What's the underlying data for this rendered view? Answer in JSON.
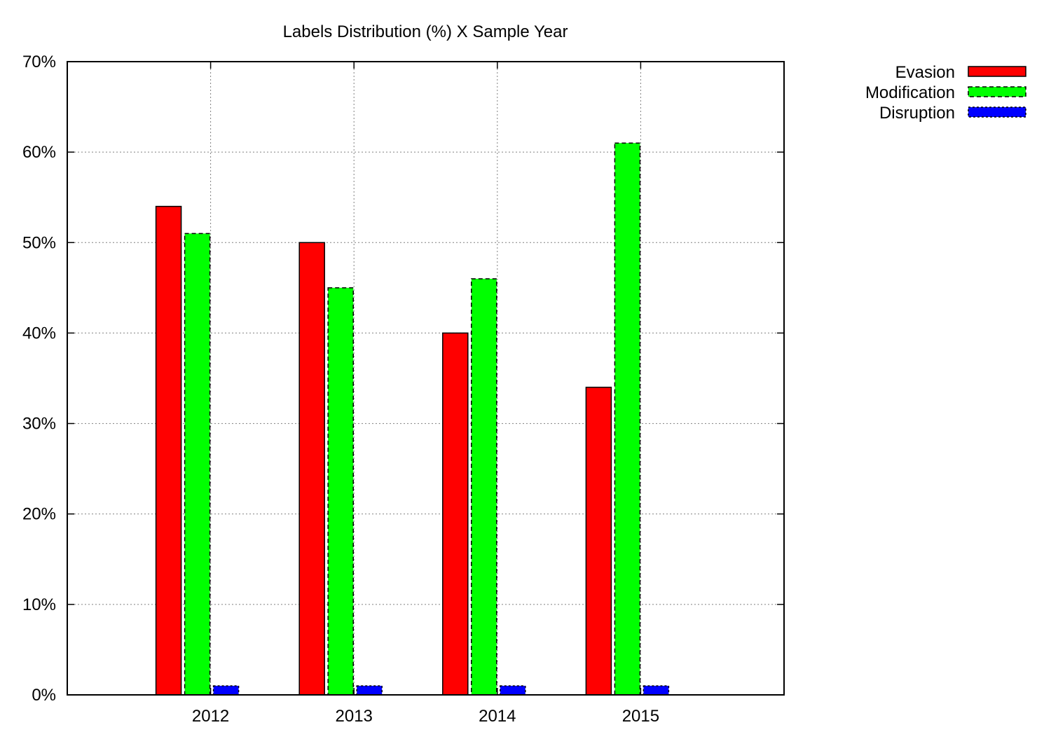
{
  "chart_data": {
    "type": "bar",
    "title": "Labels Distribution (%) X Sample Year",
    "xlabel": "",
    "ylabel": "",
    "categories": [
      "2012",
      "2013",
      "2014",
      "2015"
    ],
    "series": [
      {
        "name": "Evasion",
        "values": [
          54,
          50,
          40,
          34
        ],
        "color": "#ff0000",
        "border": "solid"
      },
      {
        "name": "Modification",
        "values": [
          51,
          45,
          46,
          61
        ],
        "color": "#00ff00",
        "border": "dashed"
      },
      {
        "name": "Disruption",
        "values": [
          1,
          1,
          1,
          1
        ],
        "color": "#0000ff",
        "border": "dotted"
      }
    ],
    "ylim": [
      0,
      70
    ],
    "x_range_in_category_units": [
      -1.0,
      4.0
    ],
    "yticks": [
      0,
      10,
      20,
      30,
      40,
      50,
      60,
      70
    ],
    "ytick_labels": [
      "0%",
      "10%",
      "20%",
      "30%",
      "40%",
      "50%",
      "60%",
      "70%"
    ],
    "grid": true,
    "legend_position": "outside-top-right"
  }
}
